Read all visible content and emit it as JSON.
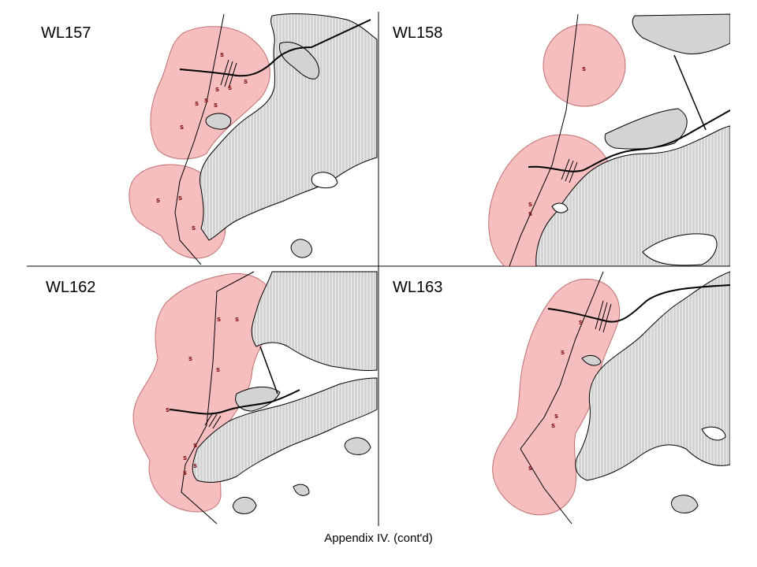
{
  "caption": "Appendix IV.  (cont'd)",
  "colors": {
    "land_fill": "#d3d3d3",
    "land_stroke": "#000000",
    "buffer_fill": "#f5b3b3",
    "buffer_stroke": "#b05a5a",
    "sighting_marker": "#7a0000",
    "hatch": "#ffffff"
  },
  "sighting_symbol": "s",
  "panels": [
    {
      "id": "WL157",
      "label": "WL157",
      "sightings": 11
    },
    {
      "id": "WL158",
      "label": "WL158",
      "sightings": 3
    },
    {
      "id": "WL162",
      "label": "WL162",
      "sightings": 9
    },
    {
      "id": "WL163",
      "label": "WL163",
      "sightings": 5
    }
  ]
}
